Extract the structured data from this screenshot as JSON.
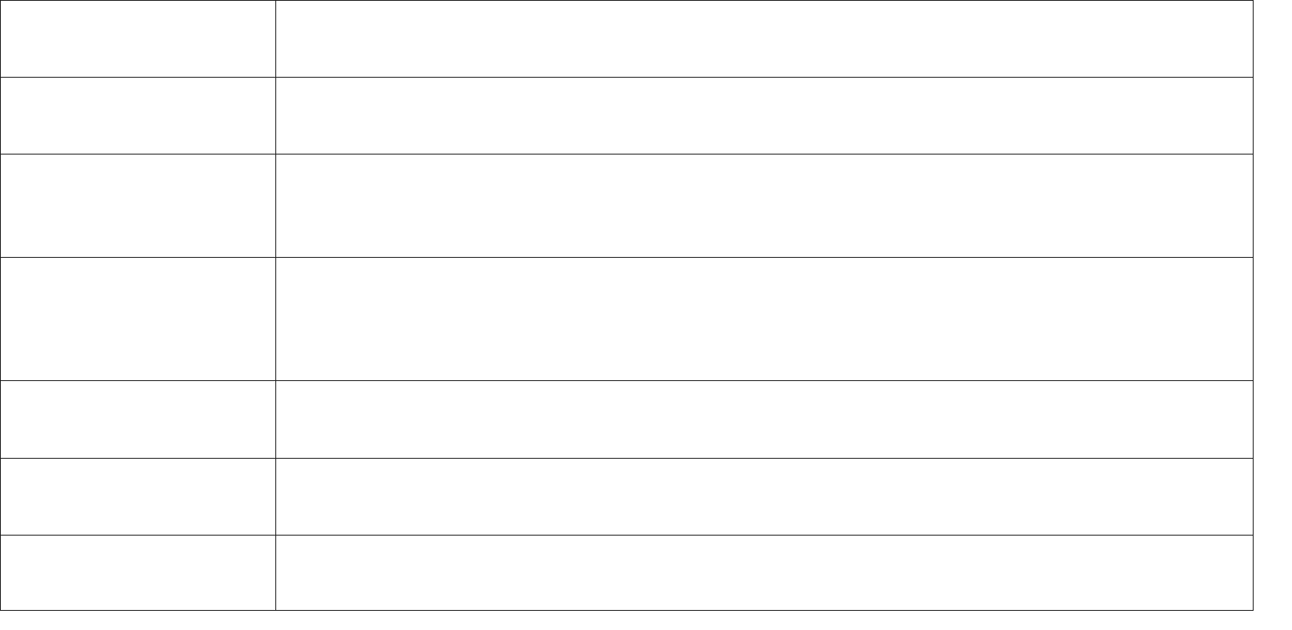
{
  "table": {
    "border_color": "#1a1a1a",
    "rows": [
      {
        "cells": [
          "",
          ""
        ]
      },
      {
        "cells": [
          "",
          ""
        ]
      },
      {
        "cells": [
          "",
          ""
        ]
      },
      {
        "cells": [
          "",
          ""
        ]
      },
      {
        "cells": [
          "",
          ""
        ]
      },
      {
        "cells": [
          "",
          ""
        ]
      },
      {
        "cells": [
          "",
          ""
        ]
      }
    ]
  }
}
